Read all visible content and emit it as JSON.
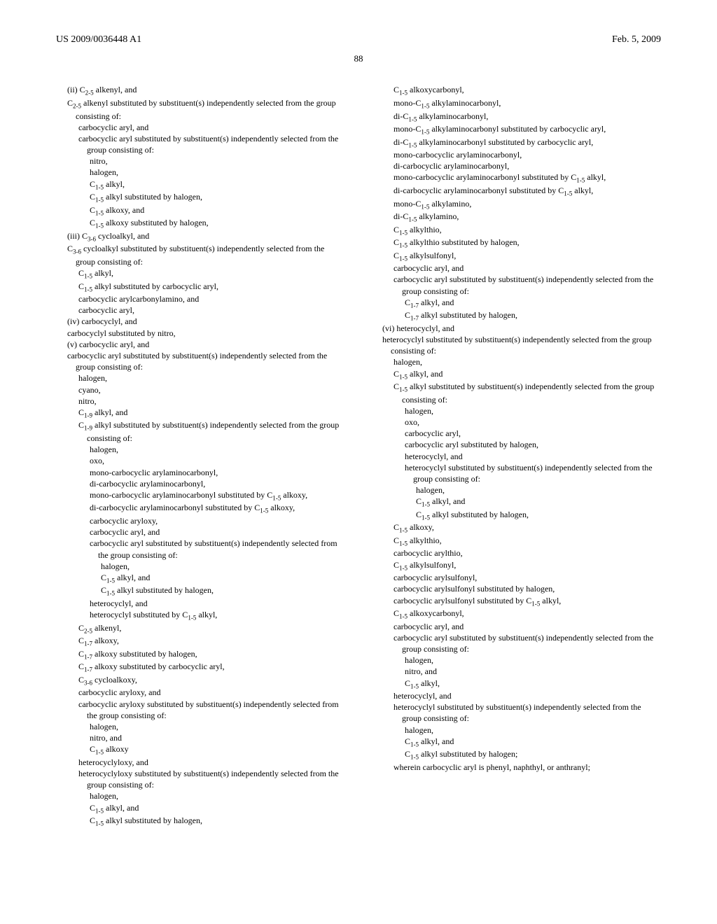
{
  "header": {
    "pub_number": "US 2009/0036448 A1",
    "pub_date": "Feb. 5, 2009"
  },
  "page_number": "88",
  "left_column": [
    {
      "level": 1,
      "text": "(ii) C₂₋₅ alkenyl, and"
    },
    {
      "level": 1,
      "text": "C₂₋₅ alkenyl substituted by substituent(s) independently selected from the group consisting of:"
    },
    {
      "level": 2,
      "text": "carbocyclic aryl, and"
    },
    {
      "level": 2,
      "text": "carbocyclic aryl substituted by substituent(s) independently selected from the group consisting of:"
    },
    {
      "level": 3,
      "text": "nitro,"
    },
    {
      "level": 3,
      "text": "halogen,"
    },
    {
      "level": 3,
      "text": "C₁₋₅ alkyl,"
    },
    {
      "level": 3,
      "text": "C₁₋₅ alkyl substituted by halogen,"
    },
    {
      "level": 3,
      "text": "C₁₋₅ alkoxy, and"
    },
    {
      "level": 3,
      "text": "C₁₋₅ alkoxy substituted by halogen,"
    },
    {
      "level": 1,
      "text": "(iii) C₃₋₆ cycloalkyl, and"
    },
    {
      "level": 1,
      "text": "C₃₋₆ cycloalkyl substituted by substituent(s) independently selected from the group consisting of:"
    },
    {
      "level": 2,
      "text": "C₁₋₅ alkyl,"
    },
    {
      "level": 2,
      "text": "C₁₋₅ alkyl substituted by carbocyclic aryl,"
    },
    {
      "level": 2,
      "text": "carbocyclic arylcarbonylamino, and"
    },
    {
      "level": 2,
      "text": "carbocyclic aryl,"
    },
    {
      "level": 1,
      "text": "(iv) carbocyclyl, and"
    },
    {
      "level": 1,
      "text": "carbocyclyl substituted by nitro,"
    },
    {
      "level": 1,
      "text": "(v) carbocyclic aryl, and"
    },
    {
      "level": 1,
      "text": "carbocyclic aryl substituted by substituent(s) independently selected from the group consisting of:"
    },
    {
      "level": 2,
      "text": "halogen,"
    },
    {
      "level": 2,
      "text": "cyano,"
    },
    {
      "level": 2,
      "text": "nitro,"
    },
    {
      "level": 2,
      "text": "C₁₋₉ alkyl, and"
    },
    {
      "level": 2,
      "text": "C₁₋₉ alkyl substituted by substituent(s) independently selected from the group consisting of:"
    },
    {
      "level": 3,
      "text": "halogen,"
    },
    {
      "level": 3,
      "text": "oxo,"
    },
    {
      "level": 3,
      "text": "mono-carbocyclic arylaminocarbonyl,"
    },
    {
      "level": 3,
      "text": "di-carbocyclic arylaminocarbonyl,"
    },
    {
      "level": 3,
      "text": "mono-carbocyclic arylaminocarbonyl substituted by C₁₋₅ alkoxy,"
    },
    {
      "level": 3,
      "text": "di-carbocyclic arylaminocarbonyl substituted by C₁₋₅ alkoxy,"
    },
    {
      "level": 3,
      "text": "carbocyclic aryloxy,"
    },
    {
      "level": 3,
      "text": "carbocyclic aryl, and"
    },
    {
      "level": 3,
      "text": "carbocyclic aryl substituted by substituent(s) independently selected from the group consisting of:"
    },
    {
      "level": 4,
      "text": "halogen,"
    },
    {
      "level": 4,
      "text": "C₁₋₅ alkyl, and"
    },
    {
      "level": 4,
      "text": "C₁₋₅ alkyl substituted by halogen,"
    },
    {
      "level": 3,
      "text": "heterocyclyl, and"
    },
    {
      "level": 3,
      "text": "heterocyclyl substituted by C₁₋₅ alkyl,"
    },
    {
      "level": 2,
      "text": "C₂₋₅ alkenyl,"
    },
    {
      "level": 2,
      "text": "C₁₋₇ alkoxy,"
    },
    {
      "level": 2,
      "text": "C₁₋₇ alkoxy substituted by halogen,"
    },
    {
      "level": 2,
      "text": "C₁₋₇ alkoxy substituted by carbocyclic aryl,"
    },
    {
      "level": 2,
      "text": "C₃₋₆ cycloalkoxy,"
    },
    {
      "level": 2,
      "text": "carbocyclic aryloxy, and"
    },
    {
      "level": 2,
      "text": "carbocyclic aryloxy substituted by substituent(s) independently selected from the group consisting of:"
    },
    {
      "level": 3,
      "text": "halogen,"
    },
    {
      "level": 3,
      "text": "nitro, and"
    },
    {
      "level": 3,
      "text": "C₁₋₅ alkoxy"
    },
    {
      "level": 2,
      "text": "heterocyclyloxy, and"
    },
    {
      "level": 2,
      "text": "heterocyclyloxy substituted by substituent(s) independently selected from the group consisting of:"
    },
    {
      "level": 3,
      "text": "halogen,"
    },
    {
      "level": 3,
      "text": "C₁₋₅ alkyl, and"
    },
    {
      "level": 3,
      "text": "C₁₋₅ alkyl substituted by halogen,"
    }
  ],
  "right_column": [
    {
      "level": 2,
      "text": "C₁₋₅ alkoxycarbonyl,"
    },
    {
      "level": 2,
      "text": "mono-C₁₋₅ alkylaminocarbonyl,"
    },
    {
      "level": 2,
      "text": "di-C₁₋₅ alkylaminocarbonyl,"
    },
    {
      "level": 2,
      "text": "mono-C₁₋₅ alkylaminocarbonyl substituted by carbocyclic aryl,"
    },
    {
      "level": 2,
      "text": "di-C₁₋₅ alkylaminocarbonyl substituted by carbocyclic aryl,"
    },
    {
      "level": 2,
      "text": "mono-carbocyclic arylaminocarbonyl,"
    },
    {
      "level": 2,
      "text": "di-carbocyclic arylaminocarbonyl,"
    },
    {
      "level": 2,
      "text": "mono-carbocyclic arylaminocarbonyl substituted by C₁₋₅ alkyl,"
    },
    {
      "level": 2,
      "text": "di-carbocyclic arylaminocarbonyl substituted by C₁₋₅ alkyl,"
    },
    {
      "level": 2,
      "text": "mono-C₁₋₅ alkylamino,"
    },
    {
      "level": 2,
      "text": "di-C₁₋₅ alkylamino,"
    },
    {
      "level": 2,
      "text": "C₁₋₅ alkylthio,"
    },
    {
      "level": 2,
      "text": "C₁₋₅ alkylthio substituted by halogen,"
    },
    {
      "level": 2,
      "text": "C₁₋₅ alkylsulfonyl,"
    },
    {
      "level": 2,
      "text": "carbocyclic aryl, and"
    },
    {
      "level": 2,
      "text": "carbocyclic aryl substituted by substituent(s) independently selected from the group consisting of:"
    },
    {
      "level": 3,
      "text": "C₁₋₇ alkyl, and"
    },
    {
      "level": 3,
      "text": "C₁₋₇ alkyl substituted by halogen,"
    },
    {
      "level": 1,
      "text": "(vi) heterocyclyl, and"
    },
    {
      "level": 1,
      "text": "heterocyclyl substituted by substituent(s) independently selected from the group consisting of:"
    },
    {
      "level": 2,
      "text": "halogen,"
    },
    {
      "level": 2,
      "text": "C₁₋₅ alkyl, and"
    },
    {
      "level": 2,
      "text": "C₁₋₅ alkyl substituted by substituent(s) independently selected from the group consisting of:"
    },
    {
      "level": 3,
      "text": "halogen,"
    },
    {
      "level": 3,
      "text": "oxo,"
    },
    {
      "level": 3,
      "text": "carbocyclic aryl,"
    },
    {
      "level": 3,
      "text": "carbocyclic aryl substituted by halogen,"
    },
    {
      "level": 3,
      "text": "heterocyclyl, and"
    },
    {
      "level": 3,
      "text": "heterocyclyl substituted by substituent(s) independently selected from the group consisting of:"
    },
    {
      "level": 4,
      "text": "halogen,"
    },
    {
      "level": 4,
      "text": "C₁₋₅ alkyl, and"
    },
    {
      "level": 4,
      "text": "C₁₋₅ alkyl substituted by halogen,"
    },
    {
      "level": 2,
      "text": "C₁₋₅ alkoxy,"
    },
    {
      "level": 2,
      "text": "C₁₋₅ alkylthio,"
    },
    {
      "level": 2,
      "text": "carbocyclic arylthio,"
    },
    {
      "level": 2,
      "text": "C₁₋₅ alkylsulfonyl,"
    },
    {
      "level": 2,
      "text": "carbocyclic arylsulfonyl,"
    },
    {
      "level": 2,
      "text": "carbocyclic arylsulfonyl substituted by halogen,"
    },
    {
      "level": 2,
      "text": "carbocyclic arylsulfonyl substituted by C₁₋₅ alkyl,"
    },
    {
      "level": 2,
      "text": "C₁₋₅ alkoxycarbonyl,"
    },
    {
      "level": 2,
      "text": "carbocyclic aryl, and"
    },
    {
      "level": 2,
      "text": "carbocyclic aryl substituted by substituent(s) independently selected from the group consisting of:"
    },
    {
      "level": 3,
      "text": "halogen,"
    },
    {
      "level": 3,
      "text": "nitro, and"
    },
    {
      "level": 3,
      "text": "C₁₋₅ alkyl,"
    },
    {
      "level": 2,
      "text": "heterocyclyl, and"
    },
    {
      "level": 2,
      "text": "heterocyclyl substituted by substituent(s) independently selected from the group consisting of:"
    },
    {
      "level": 3,
      "text": "halogen,"
    },
    {
      "level": 3,
      "text": "C₁₋₅ alkyl, and"
    },
    {
      "level": 3,
      "text": "C₁₋₅ alkyl substituted by halogen;"
    },
    {
      "level": 2,
      "text": "wherein carbocyclic aryl is phenyl, naphthyl, or anthranyl;"
    }
  ]
}
